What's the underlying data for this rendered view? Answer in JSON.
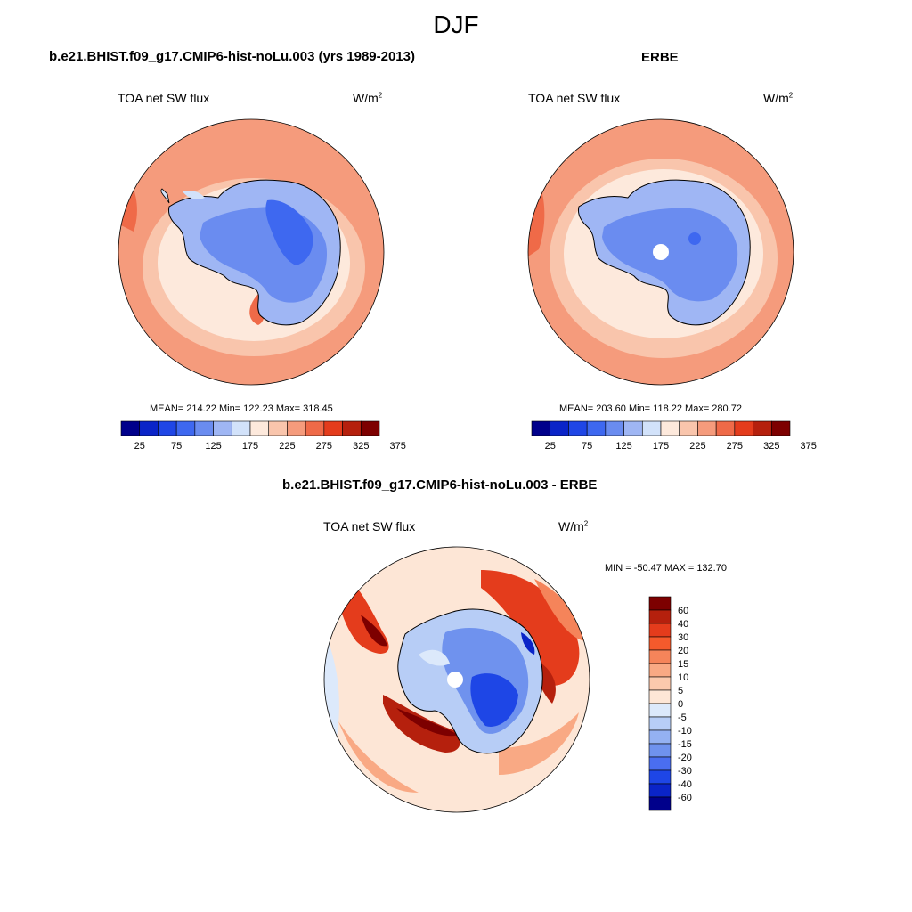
{
  "figure": {
    "season": "DJF"
  },
  "panels": [
    {
      "title": "b.e21.BHIST.f09_g17.CMIP6-hist-noLu.003 (yrs 1989-2013)",
      "variable": "TOA net SW flux",
      "units_base": "W/m",
      "units_exp": "2",
      "stats_text": "MEAN= 214.22  Min= 122.23  Max= 318.45",
      "colorbar_labels": [
        "25",
        "75",
        "125",
        "175",
        "225",
        "275",
        "325",
        "375"
      ]
    },
    {
      "title": "ERBE",
      "variable": "TOA net SW flux",
      "units_base": "W/m",
      "units_exp": "2",
      "stats_text": "MEAN= 203.60  Min= 118.22  Max= 280.72",
      "colorbar_labels": [
        "25",
        "75",
        "125",
        "175",
        "225",
        "275",
        "325",
        "375"
      ]
    },
    {
      "title": "b.e21.BHIST.f09_g17.CMIP6-hist-noLu.003 - ERBE",
      "variable": "TOA net SW flux",
      "units_base": "W/m",
      "units_exp": "2",
      "stats_text": "MIN = -50.47 MAX = 132.70",
      "colorbar_labels": [
        "60",
        "40",
        "30",
        "20",
        "15",
        "10",
        "5",
        "0",
        "-5",
        "-10",
        "-15",
        "-20",
        "-30",
        "-40",
        "-60"
      ]
    }
  ],
  "colors": {
    "abs_scale": [
      "#00008b",
      "#0a24c8",
      "#1f46e6",
      "#3e68f0",
      "#6a8cf0",
      "#9fb6f4",
      "#d2e2fa",
      "#fde9dc",
      "#f9c5ac",
      "#f59b7c",
      "#ef6a48",
      "#e43c1c",
      "#b5200d",
      "#7d0000"
    ],
    "diff_scale": [
      "#7d0000",
      "#b5200d",
      "#e43c1c",
      "#f55a2c",
      "#f5845a",
      "#f9a984",
      "#fbc9ad",
      "#fde6d6",
      "#dce9fb",
      "#b7cdf6",
      "#94b1f2",
      "#6f92ee",
      "#4a6ef0",
      "#1e46e6",
      "#0a24c8",
      "#00008b"
    ]
  }
}
